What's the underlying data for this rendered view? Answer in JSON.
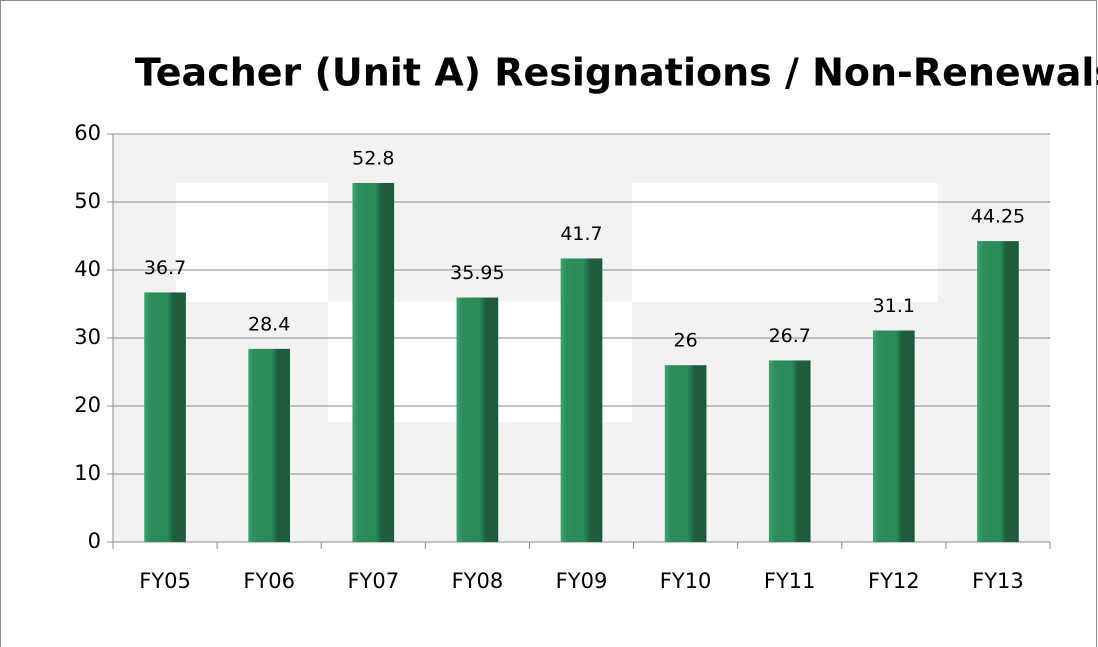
{
  "chart_data": {
    "type": "bar",
    "title": "Teacher (Unit A) Resignations / Non-Renewals",
    "categories": [
      "FY05",
      "FY06",
      "FY07",
      "FY08",
      "FY09",
      "FY10",
      "FY11",
      "FY12",
      "FY13"
    ],
    "values": [
      36.7,
      28.4,
      52.8,
      35.95,
      41.7,
      26,
      26.7,
      31.1,
      44.25
    ],
    "color": "#2e8b5a",
    "ylim": [
      0,
      60
    ],
    "yticks": [
      0,
      10,
      20,
      30,
      40,
      50,
      60
    ],
    "grid": true
  }
}
